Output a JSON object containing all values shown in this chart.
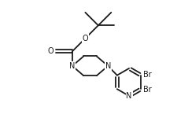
{
  "bg_color": "#ffffff",
  "line_color": "#1a1a1a",
  "line_width": 1.3,
  "font_size": 7.0,
  "figsize": [
    2.25,
    1.78
  ],
  "dpi": 100,
  "xlim": [
    0.0,
    10.0
  ],
  "ylim": [
    0.0,
    8.5
  ]
}
